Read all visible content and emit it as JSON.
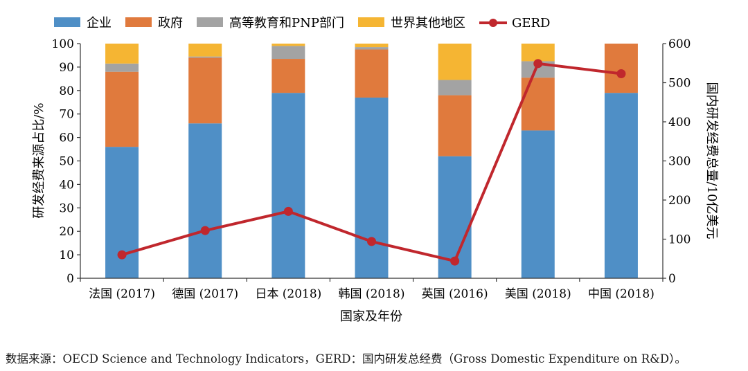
{
  "chart_data": {
    "type": "bar",
    "stacked": true,
    "categories": [
      "法国 (2017)",
      "德国 (2017)",
      "日本 (2018)",
      "韩国 (2018)",
      "英国 (2016)",
      "美国 (2018)",
      "中国 (2018)"
    ],
    "series": [
      {
        "name": "企业",
        "kind": "bar",
        "color": "#4f8fc6",
        "values": [
          56,
          66,
          79,
          77,
          52,
          63,
          79
        ]
      },
      {
        "name": "政府",
        "kind": "bar",
        "color": "#e07a3d",
        "values": [
          32,
          28,
          14.5,
          20.5,
          26,
          22.5,
          21
        ]
      },
      {
        "name": "高等教育和PNP部门",
        "kind": "bar",
        "color": "#a3a3a3",
        "values": [
          3.5,
          0.5,
          5.5,
          1,
          6.5,
          7,
          0
        ]
      },
      {
        "name": "世界其他地区",
        "kind": "bar",
        "color": "#f5b533",
        "values": [
          8.5,
          5.5,
          1,
          1.5,
          15.5,
          7.5,
          0
        ]
      },
      {
        "name": "GERD",
        "kind": "line",
        "axis": "right",
        "color": "#c0272d",
        "values": [
          60,
          122,
          171,
          94,
          44,
          549,
          523
        ]
      }
    ],
    "xlabel": "国家及年份",
    "ylabel": "研发经费来源占比/%",
    "ylabel_right": "国内研发经费总量/10亿美元",
    "ylim": [
      0,
      100
    ],
    "yticks": [
      0,
      10,
      20,
      30,
      40,
      50,
      60,
      70,
      80,
      90,
      100
    ],
    "ylim_right": [
      0,
      600
    ],
    "yticks_right": [
      0,
      100,
      200,
      300,
      400,
      500,
      600
    ],
    "legend_position": "top"
  },
  "source_note": "数据来源：OECD Science and Technology Indicators，GERD：国内研发总经费（Gross Domestic Expenditure on R&D）。"
}
